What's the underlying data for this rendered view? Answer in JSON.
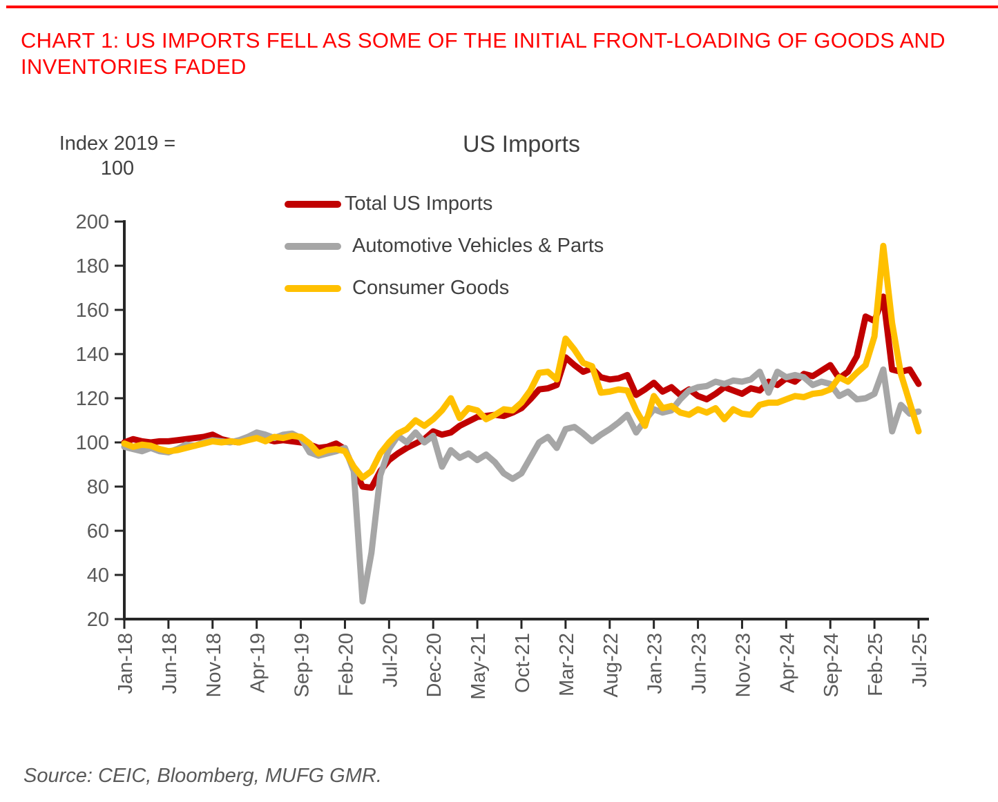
{
  "heading": "CHART 1: US IMPORTS FELL AS SOME OF THE INITIAL FRONT-LOADING OF GOODS AND INVENTORIES FADED",
  "source": "Source: CEIC, Bloomberg, MUFG GMR.",
  "chart_data": {
    "type": "line",
    "title": "US Imports",
    "axis_note": [
      "Index 2019 =",
      "100"
    ],
    "ylabel": "Index 2019 = 100",
    "ylim": [
      20,
      200
    ],
    "yticks": [
      20,
      40,
      60,
      80,
      100,
      120,
      140,
      160,
      180,
      200
    ],
    "x_unit": "month",
    "x_start": "Jan-18",
    "x_end": "Jul-25",
    "n_points": 91,
    "xtick_every_n_months": 5,
    "xtick_labels": [
      "Jan-18",
      "Jun-18",
      "Nov-18",
      "Apr-19",
      "Sep-19",
      "Feb-20",
      "Jul-20",
      "Dec-20",
      "May-21",
      "Oct-21",
      "Mar-22",
      "Aug-22",
      "Jan-23",
      "Jun-23",
      "Nov-23",
      "Apr-24",
      "Sep-24",
      "Feb-25",
      "Jul-25"
    ],
    "grid": false,
    "legend_position": "top-center",
    "colors": {
      "heading": "#FF0000",
      "axis": "#262626",
      "tick_label": "#595959",
      "text": "#404040"
    },
    "series": [
      {
        "name": "Total US Imports",
        "color": "#C00000",
        "values": [
          100,
          101.5,
          100.5,
          100,
          100.5,
          100.5,
          101,
          101.5,
          102,
          102.5,
          103.5,
          101.5,
          100.5,
          100,
          101.5,
          103,
          101.5,
          100.5,
          101,
          100.5,
          100,
          99,
          97.5,
          98,
          99.5,
          97,
          88,
          80,
          79.5,
          87,
          92,
          95,
          97.5,
          99.5,
          101.5,
          105,
          103.5,
          104.5,
          107.5,
          109.5,
          111.5,
          112,
          112.5,
          112,
          113.5,
          115.5,
          119.5,
          124,
          124.5,
          126,
          138.5,
          135,
          132,
          133.5,
          129.5,
          128.5,
          129,
          130.5,
          121.5,
          124,
          127,
          123,
          125,
          121.5,
          124,
          121,
          119.5,
          122,
          125,
          123.5,
          122,
          124.5,
          123.5,
          127.5,
          126,
          129,
          127.5,
          131,
          130,
          132.5,
          135,
          129,
          132,
          139,
          157,
          155,
          166,
          133,
          132,
          133,
          126.5
        ]
      },
      {
        "name": "Automotive Vehicles & Parts",
        "color": "#A6A6A6",
        "values": [
          98,
          97,
          96,
          97.5,
          96,
          95.5,
          97,
          99,
          98.5,
          100,
          101,
          100.5,
          100,
          101,
          102.5,
          104.5,
          103.5,
          102,
          103.5,
          104,
          102,
          95.5,
          94,
          95,
          96,
          97.5,
          87,
          28,
          50,
          85,
          97,
          103,
          100,
          104.5,
          100,
          103,
          89,
          96.5,
          93,
          95,
          92,
          94.5,
          91,
          86,
          83.5,
          86,
          93,
          100,
          102.5,
          97.5,
          106,
          107,
          104,
          100.5,
          103.5,
          106,
          109,
          112.5,
          104.5,
          110,
          115,
          113.5,
          114.5,
          119.5,
          123.5,
          125,
          125.5,
          127.5,
          126.5,
          128,
          127.5,
          128.5,
          132,
          122.5,
          132,
          129.5,
          130.5,
          129.5,
          126,
          127.5,
          126.5,
          121,
          123,
          119.5,
          120,
          122,
          133,
          105,
          117,
          113,
          114
        ]
      },
      {
        "name": "Consumer Goods",
        "color": "#FFC000",
        "values": [
          99.5,
          98,
          99,
          98.5,
          97,
          96,
          96.5,
          97.5,
          98.5,
          99.5,
          100.5,
          100,
          100.5,
          100,
          101,
          102,
          100.5,
          102.5,
          102,
          103,
          102.5,
          99.5,
          95,
          96.5,
          97,
          96,
          89,
          84,
          87,
          95,
          100,
          104,
          106,
          110,
          107.5,
          110.5,
          114.5,
          120,
          111,
          115.5,
          114.5,
          110.5,
          112.5,
          115,
          114.5,
          118,
          123.5,
          131.5,
          132,
          128.5,
          147,
          142,
          136,
          134.5,
          122.5,
          123,
          124,
          123.5,
          114.5,
          107.5,
          121,
          115.5,
          116.5,
          113.5,
          112.5,
          115,
          113.5,
          115.5,
          110.5,
          115,
          113,
          112.5,
          117,
          118,
          118,
          119.5,
          121,
          120.5,
          122,
          122.5,
          124,
          129.5,
          127.5,
          131.5,
          135,
          148,
          189,
          154,
          131,
          118,
          105
        ]
      }
    ]
  }
}
